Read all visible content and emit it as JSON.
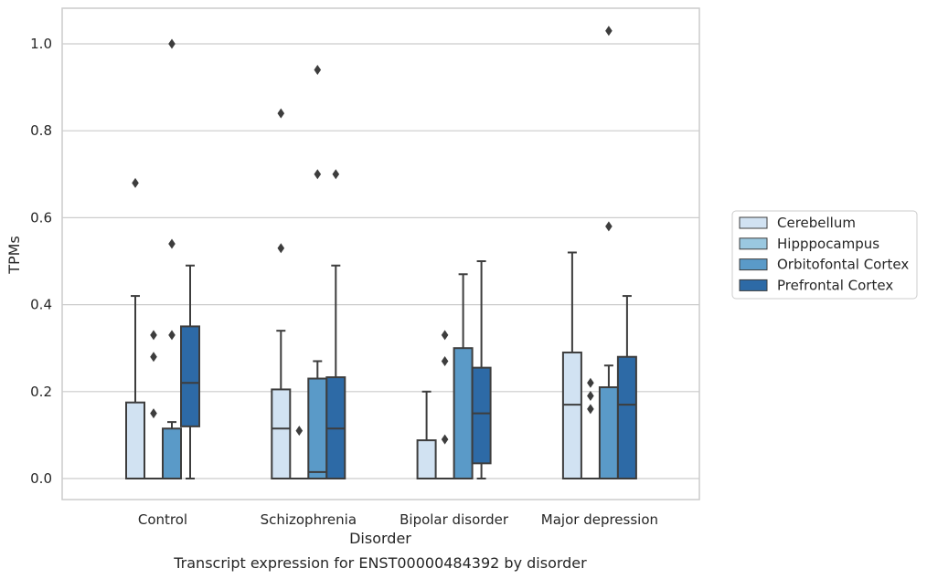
{
  "chart_data": {
    "type": "boxplot",
    "title": "",
    "caption": "Transcript expression for ENST00000484392 by disorder",
    "xlabel": "Disorder",
    "ylabel": "TPMs",
    "ylim": [
      -0.05,
      1.08
    ],
    "yticks": [
      0.0,
      0.2,
      0.4,
      0.6,
      0.8,
      1.0
    ],
    "ytick_labels": [
      "0.0",
      "0.2",
      "0.4",
      "0.6",
      "0.8",
      "1.0"
    ],
    "grid": "horizontal",
    "legend_position": "right",
    "categories": [
      "Control",
      "Schizophrenia",
      "Bipolar disorder",
      "Major depression"
    ],
    "series": [
      {
        "name": "Cerebellum",
        "color": "#d1e2f2",
        "boxes": [
          {
            "q1": 0.0,
            "median": 0.0,
            "q3": 0.175,
            "whisker_low": 0.0,
            "whisker_high": 0.42,
            "outliers": [
              0.68
            ]
          },
          {
            "q1": 0.0,
            "median": 0.115,
            "q3": 0.205,
            "whisker_low": 0.0,
            "whisker_high": 0.34,
            "outliers": [
              0.53,
              0.84
            ]
          },
          {
            "q1": 0.0,
            "median": 0.0,
            "q3": 0.088,
            "whisker_low": 0.0,
            "whisker_high": 0.2,
            "outliers": []
          },
          {
            "q1": 0.0,
            "median": 0.17,
            "q3": 0.29,
            "whisker_low": 0.0,
            "whisker_high": 0.52,
            "outliers": []
          }
        ]
      },
      {
        "name": "Hipppocampus",
        "color": "#9ac8e0",
        "boxes": [
          {
            "q1": 0.0,
            "median": 0.0,
            "q3": 0.0,
            "whisker_low": 0.0,
            "whisker_high": 0.0,
            "outliers": [
              0.15,
              0.28,
              0.33
            ]
          },
          {
            "q1": 0.0,
            "median": 0.0,
            "q3": 0.0,
            "whisker_low": 0.0,
            "whisker_high": 0.0,
            "outliers": [
              0.11
            ]
          },
          {
            "q1": 0.0,
            "median": 0.0,
            "q3": 0.0,
            "whisker_low": 0.0,
            "whisker_high": 0.0,
            "outliers": [
              0.09,
              0.27,
              0.33
            ]
          },
          {
            "q1": 0.0,
            "median": 0.0,
            "q3": 0.0,
            "whisker_low": 0.0,
            "whisker_high": 0.0,
            "outliers": [
              0.16,
              0.19,
              0.22
            ]
          }
        ]
      },
      {
        "name": "Orbitofontal Cortex",
        "color": "#5a9ac8",
        "boxes": [
          {
            "q1": 0.0,
            "median": 0.0,
            "q3": 0.115,
            "whisker_low": 0.0,
            "whisker_high": 0.13,
            "outliers": [
              0.33,
              0.54,
              1.0
            ]
          },
          {
            "q1": 0.0,
            "median": 0.015,
            "q3": 0.23,
            "whisker_low": 0.0,
            "whisker_high": 0.27,
            "outliers": [
              0.7,
              0.94
            ]
          },
          {
            "q1": 0.0,
            "median": 0.0,
            "q3": 0.3,
            "whisker_low": 0.0,
            "whisker_high": 0.47,
            "outliers": []
          },
          {
            "q1": 0.0,
            "median": 0.0,
            "q3": 0.21,
            "whisker_low": 0.0,
            "whisker_high": 0.26,
            "outliers": [
              0.58,
              1.03
            ]
          }
        ]
      },
      {
        "name": "Prefrontal Cortex",
        "color": "#2d6aa6",
        "boxes": [
          {
            "q1": 0.12,
            "median": 0.22,
            "q3": 0.35,
            "whisker_low": 0.0,
            "whisker_high": 0.49,
            "outliers": []
          },
          {
            "q1": 0.0,
            "median": 0.115,
            "q3": 0.233,
            "whisker_low": 0.0,
            "whisker_high": 0.49,
            "outliers": [
              0.7
            ]
          },
          {
            "q1": 0.035,
            "median": 0.15,
            "q3": 0.255,
            "whisker_low": 0.0,
            "whisker_high": 0.5,
            "outliers": []
          },
          {
            "q1": 0.0,
            "median": 0.17,
            "q3": 0.28,
            "whisker_low": 0.0,
            "whisker_high": 0.42,
            "outliers": []
          }
        ]
      }
    ]
  },
  "colors": {
    "grid": "#cccccc",
    "axes_border": "#cccccc",
    "box_edge": "#3d3d3d",
    "text": "#262626"
  }
}
